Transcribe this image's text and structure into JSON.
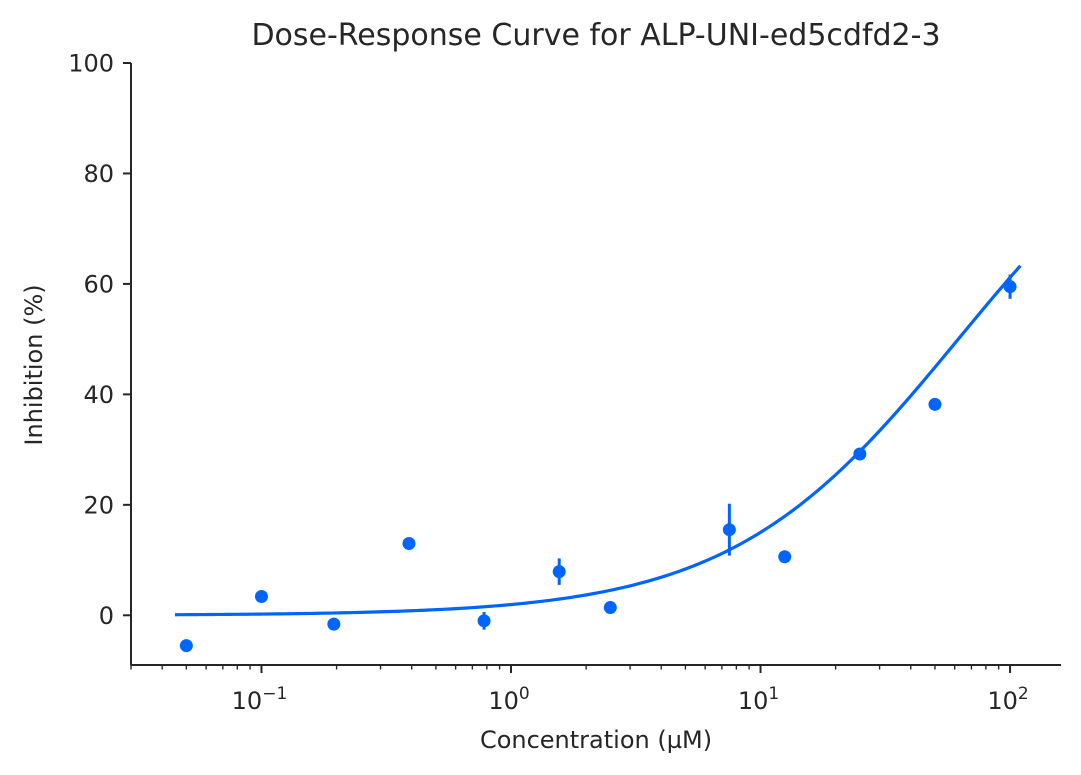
{
  "chart_data": {
    "type": "scatter",
    "title": "Dose-Response Curve for ALP-UNI-ed5cdfd2-3",
    "xlabel": "Concentration (µM)",
    "ylabel": "Inhibition (%)",
    "x_scale": "log",
    "xlim": [
      0.03,
      160
    ],
    "ylim": [
      -9,
      100
    ],
    "x_ticks": [
      {
        "value": 0.1,
        "base": "10",
        "exp": "−1"
      },
      {
        "value": 1,
        "base": "10",
        "exp": "0"
      },
      {
        "value": 10,
        "base": "10",
        "exp": "1"
      },
      {
        "value": 100,
        "base": "10",
        "exp": "2"
      }
    ],
    "y_ticks": [
      0,
      20,
      40,
      60,
      80,
      100
    ],
    "grid": false,
    "color": "#0064ff",
    "series": [
      {
        "kind": "points",
        "x": [
          0.05,
          0.1,
          0.195,
          0.39,
          0.78,
          1.56,
          2.5,
          7.5,
          12.5,
          25,
          50,
          100
        ],
        "y": [
          -5.5,
          3.4,
          -1.6,
          13.0,
          -1.0,
          7.9,
          1.4,
          15.5,
          10.6,
          29.2,
          38.2,
          59.5
        ],
        "yerr": [
          0,
          0,
          0,
          0,
          1.6,
          2.4,
          0,
          4.7,
          0,
          0,
          0,
          2.2
        ]
      },
      {
        "kind": "fit-curve",
        "model": "hill",
        "bottom": 0,
        "top": 100,
        "ec50": 62,
        "hill": 0.95,
        "x_range": [
          0.045,
          110
        ]
      }
    ]
  }
}
